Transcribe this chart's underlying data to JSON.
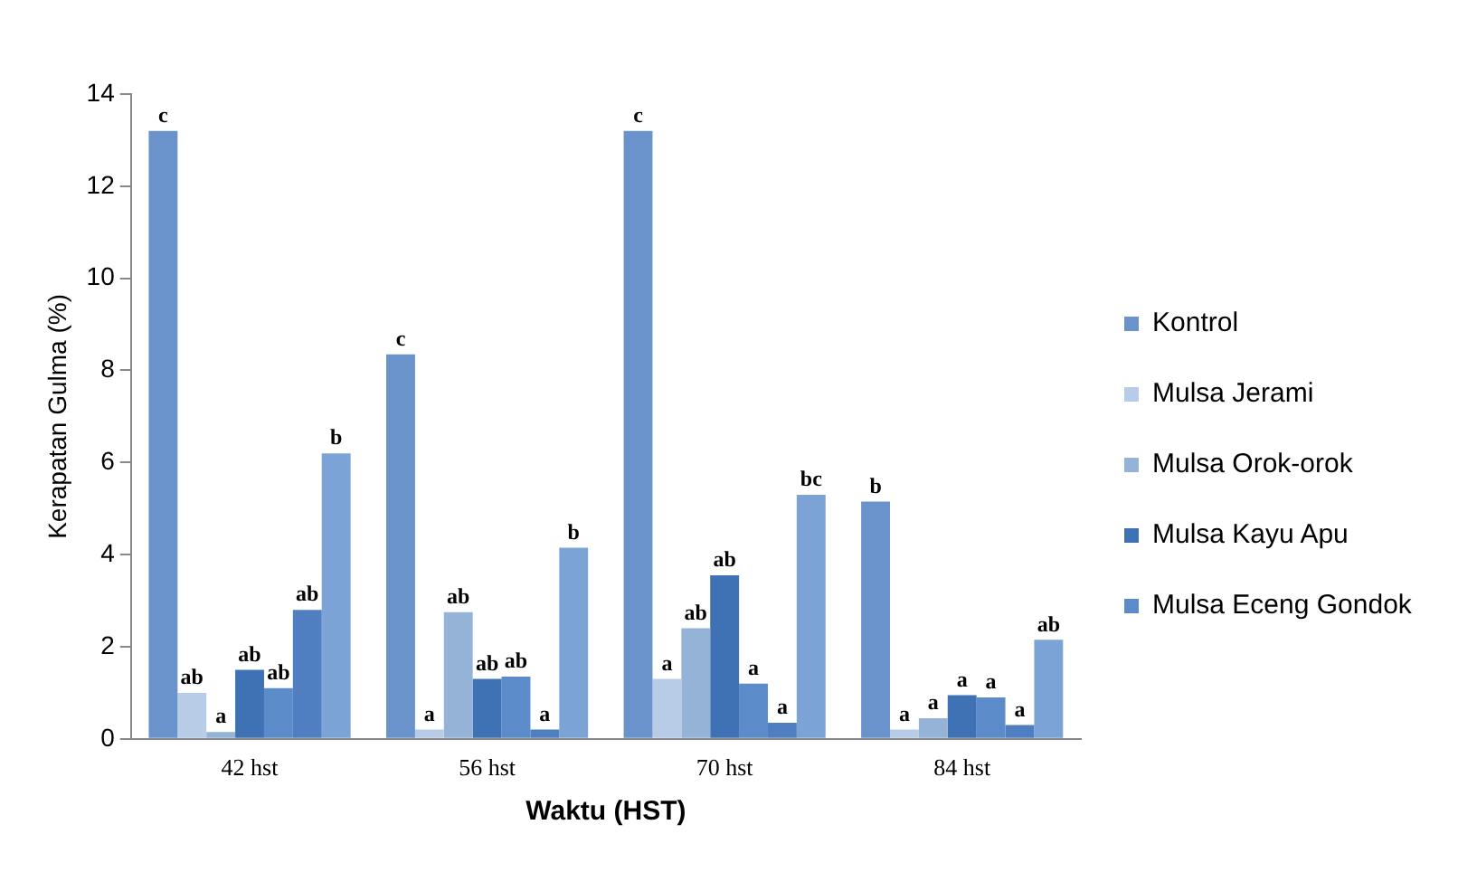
{
  "chart_data": {
    "type": "bar",
    "xlabel": "Waktu (HST)",
    "ylabel": "Kerapatan Gulma (%)",
    "categories": [
      "42 hst",
      "56 hst",
      "70 hst",
      "84 hst"
    ],
    "ylim": [
      0,
      14
    ],
    "yticks": [
      0,
      2,
      4,
      6,
      8,
      10,
      12,
      14
    ],
    "grid": false,
    "legend": "right",
    "series": [
      {
        "name": "Kontrol",
        "color": "#6a93cb",
        "values": [
          13.2,
          8.35,
          13.2,
          5.15
        ],
        "value_labels": [
          "c",
          "c",
          "c",
          "b"
        ]
      },
      {
        "name": "Mulsa Jerami",
        "color": "#b8cce8",
        "values": [
          1.0,
          0.2,
          1.3,
          0.2
        ],
        "value_labels": [
          "ab",
          "a",
          "a",
          "a"
        ]
      },
      {
        "name": "Mulsa Orok-orok",
        "color": "#95b3d7",
        "values": [
          0.15,
          2.75,
          2.4,
          0.45
        ],
        "value_labels": [
          "a",
          "ab",
          "ab",
          "a"
        ]
      },
      {
        "name": "Mulsa Kayu Apu",
        "color": "#3f72b5",
        "values": [
          1.5,
          1.3,
          3.55,
          0.95
        ],
        "value_labels": [
          "ab",
          "ab",
          "ab",
          "a"
        ]
      },
      {
        "name": "Mulsa Eceng Gondok",
        "color": "#5b8bc9",
        "values": [
          1.1,
          1.35,
          1.2,
          0.9
        ],
        "value_labels": [
          "ab",
          "ab",
          "a",
          "a"
        ]
      },
      {
        "color": "#4f7fc0",
        "values": [
          2.8,
          0.2,
          0.35,
          0.3
        ],
        "value_labels": [
          "ab",
          "a",
          "a",
          "a"
        ]
      },
      {
        "color": "#7ca3d6",
        "values": [
          6.2,
          4.15,
          5.3,
          2.15
        ],
        "value_labels": [
          "b",
          "b",
          "bc",
          "ab"
        ]
      }
    ]
  }
}
